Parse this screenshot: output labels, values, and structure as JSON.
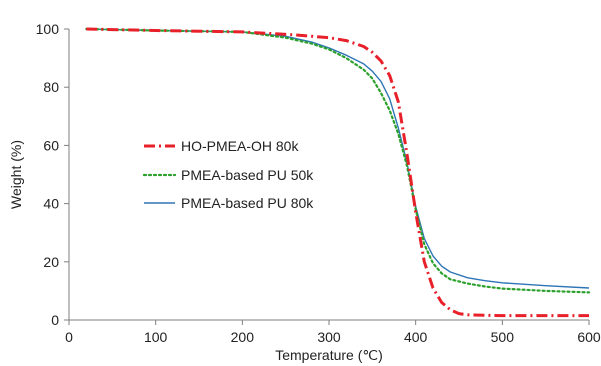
{
  "chart_data": {
    "type": "line",
    "xlabel": "Temperature (℃)",
    "ylabel": "Weight (%)",
    "xlim": [
      0,
      600
    ],
    "ylim": [
      0,
      100
    ],
    "xticks": [
      0,
      100,
      200,
      300,
      400,
      500,
      600
    ],
    "yticks": [
      0,
      20,
      40,
      60,
      80,
      100
    ],
    "grid": false,
    "legend_position": "center-left",
    "series": [
      {
        "name": "HO-PMEA-OH 80k",
        "color": "#e8202a",
        "style": "dashdot",
        "x": [
          20,
          100,
          200,
          230,
          260,
          300,
          320,
          340,
          350,
          360,
          370,
          380,
          390,
          400,
          410,
          420,
          430,
          440,
          450,
          460,
          480,
          500,
          600
        ],
        "y": [
          100,
          99.5,
          99,
          98.5,
          98,
          97,
          96,
          94,
          92,
          89,
          84,
          75,
          57,
          37,
          20,
          11,
          6,
          3.5,
          2.2,
          1.8,
          1.6,
          1.5,
          1.5
        ]
      },
      {
        "name": "PMEA-based PU 50k",
        "color": "#2ca02c",
        "style": "dotted",
        "x": [
          20,
          100,
          200,
          250,
          280,
          300,
          320,
          340,
          350,
          360,
          370,
          380,
          390,
          400,
          410,
          420,
          430,
          440,
          460,
          480,
          500,
          550,
          600
        ],
        "y": [
          100,
          99.5,
          99,
          97,
          95,
          93,
          90,
          86,
          83,
          78,
          72,
          64,
          53,
          38,
          26,
          19.5,
          16,
          14,
          12.5,
          11.5,
          10.8,
          10,
          9.5
        ]
      },
      {
        "name": "PMEA-based PU 80k",
        "color": "#2e75b6",
        "style": "solid",
        "x": [
          20,
          100,
          200,
          250,
          280,
          300,
          320,
          340,
          350,
          360,
          370,
          380,
          390,
          400,
          410,
          420,
          430,
          440,
          460,
          480,
          500,
          550,
          600
        ],
        "y": [
          100,
          99.5,
          99,
          97.5,
          95.5,
          93.5,
          91,
          88,
          85.5,
          82,
          76,
          66,
          54,
          39,
          28,
          22,
          18.5,
          16.5,
          14.5,
          13.5,
          12.8,
          11.8,
          11
        ]
      }
    ]
  }
}
